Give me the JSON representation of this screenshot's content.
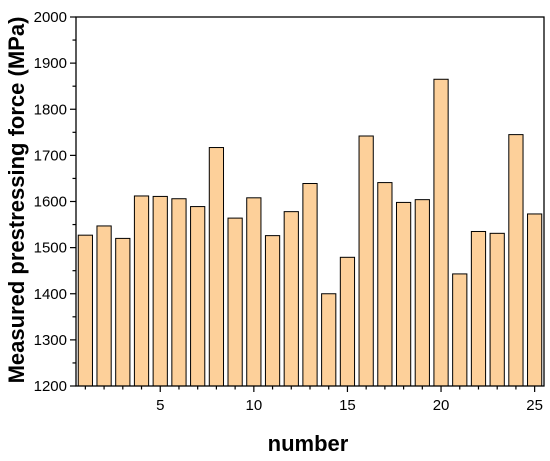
{
  "chart_data": {
    "type": "bar",
    "title": "",
    "xlabel": "number",
    "ylabel": "Measured prestressing force (MPa)",
    "ylim": [
      1200,
      2000
    ],
    "xlim": [
      0.5,
      25.5
    ],
    "categories": [
      1,
      2,
      3,
      4,
      5,
      6,
      7,
      8,
      9,
      10,
      11,
      12,
      13,
      14,
      15,
      16,
      17,
      18,
      19,
      20,
      21,
      22,
      23,
      24,
      25
    ],
    "values": [
      1527,
      1547,
      1520,
      1612,
      1611,
      1606,
      1589,
      1717,
      1564,
      1608,
      1526,
      1578,
      1639,
      1400,
      1479,
      1742,
      1641,
      1598,
      1604,
      1865,
      1443,
      1535,
      1531,
      1745,
      1573
    ],
    "x_ticks": [
      5,
      10,
      15,
      20,
      25
    ],
    "y_ticks": [
      1200,
      1300,
      1400,
      1500,
      1600,
      1700,
      1800,
      1900,
      2000
    ],
    "bar_color": "#fdd09a",
    "bar_edge_color": "#000000",
    "grid": false,
    "legend": "none"
  }
}
